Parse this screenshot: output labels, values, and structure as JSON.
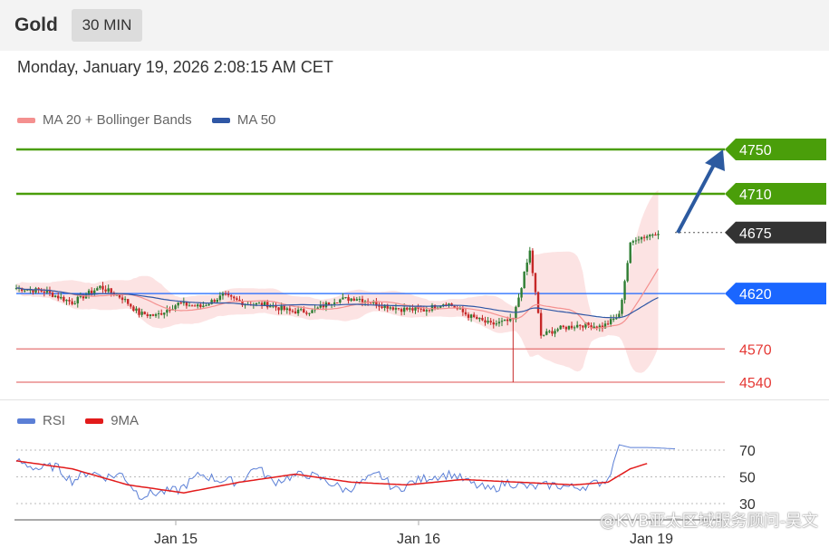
{
  "header": {
    "title": "Gold",
    "timeframe": "30 MIN"
  },
  "timestamp": "Monday, January 19, 2026 2:08:15 AM CET",
  "legend_main": [
    {
      "label": "MA 20 + Bollinger Bands",
      "color": "#f4908f"
    },
    {
      "label": "MA 50",
      "color": "#2f57a5"
    }
  ],
  "legend_rsi": [
    {
      "label": "RSI",
      "color": "#5b7fd6"
    },
    {
      "label": "9MA",
      "color": "#e21b1b"
    }
  ],
  "watermark": "@KVB亚太区域服务顾问-吴文",
  "colors": {
    "up": "#2e7d32",
    "down": "#c62828",
    "resistance": "#4a9e0a",
    "pivot": "#1a66ff",
    "support": "#e57373",
    "arrow": "#2c5aa0",
    "current": "#333333"
  },
  "chart_data": [
    {
      "type": "candlestick",
      "x_ticks": [
        "Jan 15",
        "Jan 16",
        "Jan 19"
      ],
      "ylim": [
        4530,
        4760
      ],
      "levels": [
        {
          "value": 4750,
          "label": "4750",
          "kind": "resistance"
        },
        {
          "value": 4710,
          "label": "4710",
          "kind": "resistance"
        },
        {
          "value": 4675,
          "label": "4675",
          "kind": "current"
        },
        {
          "value": 4620,
          "label": "4620",
          "kind": "pivot"
        },
        {
          "value": 4570,
          "label": "4570",
          "kind": "support"
        },
        {
          "value": 4540,
          "label": "4540",
          "kind": "support"
        }
      ],
      "price_path": [
        [
          0,
          4625
        ],
        [
          10,
          4622
        ],
        [
          20,
          4612
        ],
        [
          30,
          4626
        ],
        [
          38,
          4616
        ],
        [
          44,
          4602
        ],
        [
          50,
          4600
        ],
        [
          58,
          4611
        ],
        [
          66,
          4608
        ],
        [
          74,
          4618
        ],
        [
          82,
          4611
        ],
        [
          90,
          4610
        ],
        [
          98,
          4604
        ],
        [
          106,
          4604
        ],
        [
          114,
          4614
        ],
        [
          122,
          4616
        ],
        [
          130,
          4610
        ],
        [
          138,
          4606
        ],
        [
          146,
          4605
        ],
        [
          154,
          4612
        ],
        [
          162,
          4600
        ],
        [
          170,
          4592
        ],
        [
          178,
          4596
        ],
        [
          184,
          4658
        ],
        [
          188,
          4582
        ],
        [
          194,
          4588
        ],
        [
          202,
          4592
        ],
        [
          210,
          4590
        ],
        [
          216,
          4600
        ],
        [
          220,
          4664
        ],
        [
          222,
          4670
        ],
        [
          226,
          4672
        ],
        [
          230,
          4676
        ]
      ],
      "annotation": "arrow toward 4750"
    },
    {
      "type": "line",
      "series": [
        {
          "name": "RSI",
          "color": "#5b7fd6"
        },
        {
          "name": "9MA",
          "color": "#e21b1b"
        }
      ],
      "y_ticks": [
        70,
        50,
        30
      ],
      "ylim": [
        30,
        70
      ],
      "rsi_path": [
        [
          0,
          62
        ],
        [
          8,
          56
        ],
        [
          14,
          58
        ],
        [
          20,
          47
        ],
        [
          26,
          54
        ],
        [
          32,
          50
        ],
        [
          38,
          52
        ],
        [
          44,
          36
        ],
        [
          50,
          38
        ],
        [
          58,
          40
        ],
        [
          66,
          52
        ],
        [
          72,
          48
        ],
        [
          80,
          46
        ],
        [
          86,
          58
        ],
        [
          92,
          46
        ],
        [
          98,
          50
        ],
        [
          104,
          52
        ],
        [
          110,
          48
        ],
        [
          118,
          40
        ],
        [
          124,
          46
        ],
        [
          130,
          52
        ],
        [
          136,
          40
        ],
        [
          142,
          46
        ],
        [
          148,
          50
        ],
        [
          156,
          52
        ],
        [
          164,
          44
        ],
        [
          170,
          40
        ],
        [
          176,
          46
        ],
        [
          184,
          42
        ],
        [
          192,
          44
        ],
        [
          200,
          42
        ],
        [
          206,
          44
        ],
        [
          212,
          48
        ],
        [
          216,
          74
        ],
        [
          220,
          72
        ],
        [
          226,
          72
        ],
        [
          236,
          71
        ]
      ],
      "ma_path": [
        [
          0,
          62
        ],
        [
          20,
          56
        ],
        [
          40,
          44
        ],
        [
          60,
          38
        ],
        [
          80,
          46
        ],
        [
          100,
          52
        ],
        [
          120,
          46
        ],
        [
          140,
          44
        ],
        [
          160,
          48
        ],
        [
          180,
          46
        ],
        [
          200,
          44
        ],
        [
          212,
          46
        ],
        [
          220,
          56
        ],
        [
          226,
          60
        ]
      ]
    }
  ]
}
